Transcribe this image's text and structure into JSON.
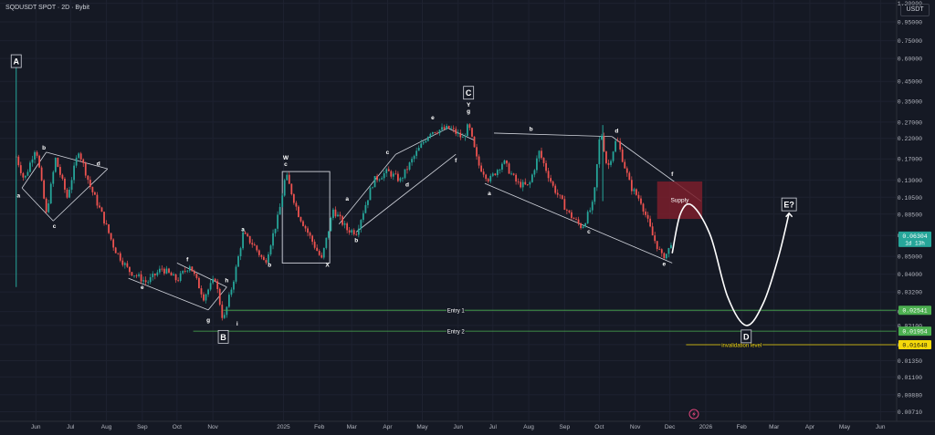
{
  "header": {
    "title": "SQDUSDT SPOT · 2D · Bybit",
    "currency": "USDT"
  },
  "colors": {
    "background": "#151924",
    "up_candle": "#26a69a",
    "down_candle": "#ef5350",
    "pattern_line": "#d1d4dc",
    "wave_path": "#ffffff",
    "supply_zone": "#7a1f2b",
    "entry_line": "#4caf50",
    "invalidation_line": "#f5d90a",
    "price_badge": "#26a69a"
  },
  "chart_data": {
    "type": "candlestick",
    "y_scale": "log",
    "ylim": [
      0.0063,
      1.25
    ],
    "y_ticks": [
      1.2,
      0.95,
      0.75,
      0.6,
      0.45,
      0.35,
      0.27,
      0.22,
      0.17,
      0.13,
      0.105,
      0.085,
      0.065,
      0.05,
      0.04,
      0.032,
      0.025,
      0.021,
      0.0165,
      0.0135,
      0.011,
      0.0088,
      0.0071
    ],
    "y_tick_labels": [
      "1.20000",
      "0.95000",
      "0.75000",
      "0.60000",
      "0.45000",
      "0.35000",
      "0.27000",
      "0.22000",
      "0.17000",
      "0.13000",
      "0.10500",
      "0.08500",
      "0.06500",
      "0.05000",
      "0.04000",
      "0.03200",
      "0.02500",
      "0.02100",
      "0.01650",
      "0.01350",
      "0.01100",
      "0.00880",
      "0.00710"
    ],
    "x_range": [
      "2024-05-01",
      "2026-06-15"
    ],
    "x_ticks": [
      {
        "label": "Jun",
        "date": "2024-06-01"
      },
      {
        "label": "Jul",
        "date": "2024-07-01"
      },
      {
        "label": "Aug",
        "date": "2024-08-01"
      },
      {
        "label": "Sep",
        "date": "2024-09-01"
      },
      {
        "label": "Oct",
        "date": "2024-10-01"
      },
      {
        "label": "Nov",
        "date": "2024-11-01"
      },
      {
        "label": "2025",
        "date": "2025-01-01"
      },
      {
        "label": "Feb",
        "date": "2025-02-01"
      },
      {
        "label": "Mar",
        "date": "2025-03-01"
      },
      {
        "label": "Apr",
        "date": "2025-04-01"
      },
      {
        "label": "May",
        "date": "2025-05-01"
      },
      {
        "label": "Jun",
        "date": "2025-06-01"
      },
      {
        "label": "Jul",
        "date": "2025-07-01"
      },
      {
        "label": "Aug",
        "date": "2025-08-01"
      },
      {
        "label": "Sep",
        "date": "2025-09-01"
      },
      {
        "label": "Oct",
        "date": "2025-10-01"
      },
      {
        "label": "Nov",
        "date": "2025-11-01"
      },
      {
        "label": "Dec",
        "date": "2025-12-01"
      },
      {
        "label": "2026",
        "date": "2026-01-01"
      },
      {
        "label": "Feb",
        "date": "2026-02-01"
      },
      {
        "label": "Mar",
        "date": "2026-03-01"
      },
      {
        "label": "Apr",
        "date": "2026-04-01"
      },
      {
        "label": "May",
        "date": "2026-05-01"
      },
      {
        "label": "Jun",
        "date": "2026-06-01"
      }
    ],
    "price_path": [
      [
        "2024-05-15",
        0.175
      ],
      [
        "2024-05-22",
        0.13
      ],
      [
        "2024-06-01",
        0.2
      ],
      [
        "2024-06-10",
        0.085
      ],
      [
        "2024-06-18",
        0.17
      ],
      [
        "2024-06-28",
        0.105
      ],
      [
        "2024-07-08",
        0.19
      ],
      [
        "2024-07-18",
        0.12
      ],
      [
        "2024-07-28",
        0.085
      ],
      [
        "2024-08-08",
        0.055
      ],
      [
        "2024-08-20",
        0.042
      ],
      [
        "2024-09-05",
        0.036
      ],
      [
        "2024-09-18",
        0.043
      ],
      [
        "2024-10-01",
        0.037
      ],
      [
        "2024-10-12",
        0.045
      ],
      [
        "2024-10-24",
        0.03
      ],
      [
        "2024-11-03",
        0.038
      ],
      [
        "2024-11-10",
        0.022
      ],
      [
        "2024-11-20",
        0.04
      ],
      [
        "2024-11-27",
        0.066
      ],
      [
        "2024-12-06",
        0.058
      ],
      [
        "2024-12-16",
        0.046
      ],
      [
        "2024-12-28",
        0.085
      ],
      [
        "2025-01-03",
        0.14
      ],
      [
        "2025-01-14",
        0.085
      ],
      [
        "2025-01-25",
        0.062
      ],
      [
        "2025-02-03",
        0.048
      ],
      [
        "2025-02-13",
        0.09
      ],
      [
        "2025-02-25",
        0.07
      ],
      [
        "2025-03-05",
        0.068
      ],
      [
        "2025-03-20",
        0.13
      ],
      [
        "2025-04-01",
        0.145
      ],
      [
        "2025-04-12",
        0.13
      ],
      [
        "2025-04-25",
        0.18
      ],
      [
        "2025-05-08",
        0.24
      ],
      [
        "2025-05-25",
        0.25
      ],
      [
        "2025-06-05",
        0.22
      ],
      [
        "2025-06-10",
        0.26
      ],
      [
        "2025-06-18",
        0.16
      ],
      [
        "2025-06-28",
        0.13
      ],
      [
        "2025-07-10",
        0.165
      ],
      [
        "2025-07-22",
        0.125
      ],
      [
        "2025-08-01",
        0.12
      ],
      [
        "2025-08-10",
        0.185
      ],
      [
        "2025-08-22",
        0.12
      ],
      [
        "2025-09-05",
        0.085
      ],
      [
        "2025-09-16",
        0.072
      ],
      [
        "2025-09-26",
        0.098
      ],
      [
        "2025-10-02",
        0.25
      ],
      [
        "2025-10-08",
        0.15
      ],
      [
        "2025-10-16",
        0.22
      ],
      [
        "2025-10-28",
        0.12
      ],
      [
        "2025-11-06",
        0.1
      ],
      [
        "2025-11-16",
        0.065
      ],
      [
        "2025-11-24",
        0.05
      ],
      [
        "2025-11-29",
        0.052
      ],
      [
        "2025-12-03",
        0.063
      ]
    ],
    "last_price": "0.06304",
    "countdown": "1d 13h",
    "horizontal_levels": [
      {
        "name": "Entry 1",
        "price": 0.02541,
        "label": "0.02541",
        "start": "2024-11-10",
        "end": "2026-06-15"
      },
      {
        "name": "Entry 2",
        "price": 0.01954,
        "label": "0.01954",
        "start": "2024-10-15",
        "end": "2026-06-15"
      },
      {
        "name": "invalidation level",
        "price": 0.01648,
        "label": "0.01648",
        "start": "2025-12-15",
        "end": "2026-06-15"
      }
    ],
    "supply_zone": {
      "label": "Supply",
      "start": "2025-11-20",
      "end": "2025-12-29",
      "low": 0.08,
      "high": 0.128
    },
    "wave_projection": [
      [
        "2025-12-03",
        0.052
      ],
      [
        "2025-12-10",
        0.085
      ],
      [
        "2025-12-20",
        0.095
      ],
      [
        "2026-01-05",
        0.065
      ],
      [
        "2026-01-20",
        0.03
      ],
      [
        "2026-02-05",
        0.021
      ],
      [
        "2026-02-20",
        0.028
      ],
      [
        "2026-03-05",
        0.05
      ],
      [
        "2026-03-14",
        0.086
      ]
    ],
    "major_labels": [
      {
        "text": "A",
        "date": "2024-05-15",
        "price": 0.58
      },
      {
        "text": "B",
        "date": "2024-11-10",
        "price": 0.0182
      },
      {
        "text": "C",
        "date": "2025-06-10",
        "price": 0.39
      },
      {
        "text": "D",
        "date": "2026-02-05",
        "price": 0.0183
      },
      {
        "text": "E?",
        "date": "2026-03-14",
        "price": 0.096
      }
    ],
    "wave_labels": [
      {
        "text": "a",
        "date": "2024-05-17",
        "price": 0.107
      },
      {
        "text": "b",
        "date": "2024-06-08",
        "price": 0.195
      },
      {
        "text": "c",
        "date": "2024-06-17",
        "price": 0.073
      },
      {
        "text": "d",
        "date": "2024-07-25",
        "price": 0.16
      },
      {
        "text": "e",
        "date": "2024-09-01",
        "price": 0.034
      },
      {
        "text": "f",
        "date": "2024-10-10",
        "price": 0.048
      },
      {
        "text": "g",
        "date": "2024-10-28",
        "price": 0.0225
      },
      {
        "text": "h",
        "date": "2024-11-13",
        "price": 0.037
      },
      {
        "text": "i",
        "date": "2024-11-22",
        "price": 0.0215
      },
      {
        "text": "a",
        "date": "2024-11-27",
        "price": 0.07
      },
      {
        "text": "b",
        "date": "2024-12-20",
        "price": 0.045
      },
      {
        "text": "W",
        "date": "2025-01-03",
        "price": 0.172
      },
      {
        "text": "c",
        "date": "2025-01-03",
        "price": 0.159
      },
      {
        "text": "X",
        "date": "2025-02-08",
        "price": 0.045
      },
      {
        "text": "a",
        "date": "2025-02-25",
        "price": 0.103
      },
      {
        "text": "b",
        "date": "2025-03-05",
        "price": 0.061
      },
      {
        "text": "c",
        "date": "2025-04-01",
        "price": 0.185
      },
      {
        "text": "d",
        "date": "2025-04-18",
        "price": 0.123
      },
      {
        "text": "e",
        "date": "2025-05-10",
        "price": 0.285
      },
      {
        "text": "Y",
        "date": "2025-06-10",
        "price": 0.335
      },
      {
        "text": "g",
        "date": "2025-06-10",
        "price": 0.31
      },
      {
        "text": "f",
        "date": "2025-05-30",
        "price": 0.167
      },
      {
        "text": "a",
        "date": "2025-06-28",
        "price": 0.11
      },
      {
        "text": "b",
        "date": "2025-08-03",
        "price": 0.247
      },
      {
        "text": "c",
        "date": "2025-09-22",
        "price": 0.068
      },
      {
        "text": "d",
        "date": "2025-10-16",
        "price": 0.242
      },
      {
        "text": "e",
        "date": "2025-11-26",
        "price": 0.0455
      },
      {
        "text": "f",
        "date": "2025-12-03",
        "price": 0.14
      }
    ],
    "trendlines": [
      [
        [
          "2024-05-20",
          0.118
        ],
        [
          "2024-06-16",
          0.078
        ]
      ],
      [
        [
          "2024-06-10",
          0.185
        ],
        [
          "2024-08-02",
          0.15
        ]
      ],
      [
        [
          "2024-05-20",
          0.118
        ],
        [
          "2024-06-10",
          0.185
        ]
      ],
      [
        [
          "2024-06-16",
          0.078
        ],
        [
          "2024-08-02",
          0.15
        ]
      ],
      [
        [
          "2024-08-20",
          0.038
        ],
        [
          "2024-10-28",
          0.0255
        ]
      ],
      [
        [
          "2024-10-01",
          0.046
        ],
        [
          "2024-11-13",
          0.034
        ]
      ],
      [
        [
          "2024-10-28",
          0.0255
        ],
        [
          "2024-11-13",
          0.034
        ]
      ],
      [
        [
          "2025-02-18",
          0.075
        ],
        [
          "2025-04-08",
          0.18
        ]
      ],
      [
        [
          "2025-03-05",
          0.068
        ],
        [
          "2025-05-30",
          0.18
        ]
      ],
      [
        [
          "2025-04-08",
          0.18
        ],
        [
          "2025-05-23",
          0.25
        ]
      ],
      [
        [
          "2025-05-23",
          0.25
        ],
        [
          "2025-06-15",
          0.215
        ]
      ],
      [
        [
          "2025-07-02",
          0.235
        ],
        [
          "2025-10-12",
          0.225
        ]
      ],
      [
        [
          "2025-06-24",
          0.125
        ],
        [
          "2025-12-03",
          0.046
        ]
      ],
      [
        [
          "2025-10-12",
          0.225
        ],
        [
          "2025-12-28",
          0.1
        ]
      ]
    ],
    "w_box": {
      "start": "2024-12-31",
      "end": "2025-02-10",
      "low": 0.046,
      "high": 0.145
    }
  }
}
